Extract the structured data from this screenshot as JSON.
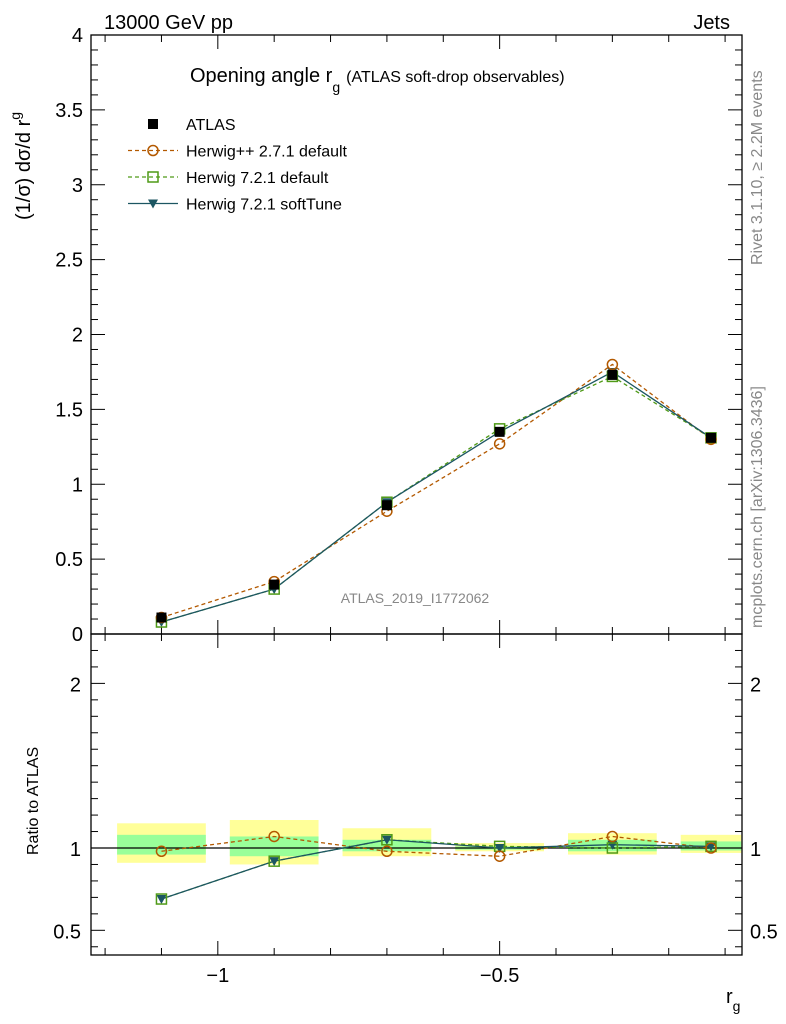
{
  "header": {
    "energy_label": "13000 GeV pp",
    "category_label": "Jets"
  },
  "side_text": {
    "rivet": "Rivet 3.1.10, ≥ 2.2M events",
    "mcplots": "mcplots.cern.ch [arXiv:1306.3436]"
  },
  "analysis_id": "ATLAS_2019_I1772062",
  "chart_data": [
    {
      "type": "line",
      "title_main": "Opening angle r",
      "title_sub": "g",
      "title_extra": "(ATLAS soft-drop observables)",
      "ylabel": "(1/σ) dσ/d r",
      "ylabel_sub": "g",
      "ylim": [
        0,
        4
      ],
      "yticks": [
        "0",
        "0.5",
        "1",
        "1.5",
        "2",
        "2.5",
        "3",
        "3.5",
        "4"
      ],
      "bin_edges": [
        -1.2,
        -1.0,
        -0.8,
        -0.6,
        -0.4,
        -0.2,
        -0.05
      ],
      "x": [
        -1.1,
        -0.9,
        -0.7,
        -0.5,
        -0.3,
        -0.125
      ],
      "legend_position": "top-left",
      "series": [
        {
          "name": "ATLAS",
          "color": "#000000",
          "marker": "square-filled",
          "dash": "none",
          "values": [
            0.11,
            0.33,
            0.86,
            1.35,
            1.73,
            1.31
          ]
        },
        {
          "name": "Herwig++ 2.7.1 default",
          "color": "#b35900",
          "marker": "circle-open",
          "dash": "4,3",
          "values": [
            0.11,
            0.35,
            0.82,
            1.27,
            1.8,
            1.3
          ]
        },
        {
          "name": "Herwig 7.2.1 default",
          "color": "#4f9a17",
          "marker": "square-open",
          "dash": "4,3",
          "values": [
            0.08,
            0.3,
            0.88,
            1.37,
            1.72,
            1.31
          ]
        },
        {
          "name": "Herwig 7.2.1 softTune",
          "color": "#1c5662",
          "marker": "triangle-down-filled",
          "dash": "none",
          "values": [
            0.08,
            0.3,
            0.88,
            1.35,
            1.75,
            1.31
          ]
        }
      ]
    },
    {
      "type": "line",
      "ylabel": "Ratio to ATLAS",
      "ylim": [
        0.35,
        2.3
      ],
      "yticks": [
        "0.5",
        "1",
        "2"
      ],
      "xlabel": "r",
      "xlabel_sub": "g",
      "xticks": [
        "−1",
        "−0.5"
      ],
      "xlim": [
        -1.225,
        -0.07
      ],
      "bin_edges": [
        -1.2,
        -1.0,
        -0.8,
        -0.6,
        -0.4,
        -0.2,
        -0.05
      ],
      "x": [
        -1.1,
        -0.9,
        -0.7,
        -0.5,
        -0.3,
        -0.125
      ],
      "band_outer": {
        "color": "#ffff99",
        "low": [
          0.91,
          0.9,
          0.95,
          0.98,
          0.96,
          0.97
        ],
        "high": [
          1.15,
          1.17,
          1.12,
          1.03,
          1.09,
          1.08
        ]
      },
      "band_inner": {
        "color": "#99ff99",
        "low": [
          0.96,
          0.95,
          0.98,
          0.99,
          0.98,
          0.985
        ],
        "high": [
          1.08,
          1.07,
          1.05,
          1.01,
          1.05,
          1.04
        ]
      },
      "series": [
        {
          "name": "Herwig++ 2.7.1 default",
          "color": "#b35900",
          "marker": "circle-open",
          "dash": "4,3",
          "values": [
            0.98,
            1.07,
            0.98,
            0.95,
            1.07,
            1.0
          ]
        },
        {
          "name": "Herwig 7.2.1 default",
          "color": "#4f9a17",
          "marker": "square-open",
          "dash": "4,3",
          "values": [
            0.69,
            0.92,
            1.05,
            1.01,
            1.0,
            1.01
          ]
        },
        {
          "name": "Herwig 7.2.1 softTune",
          "color": "#1c5662",
          "marker": "triangle-down-filled",
          "dash": "none",
          "values": [
            0.69,
            0.92,
            1.05,
            1.0,
            1.02,
            1.01
          ]
        }
      ]
    }
  ]
}
